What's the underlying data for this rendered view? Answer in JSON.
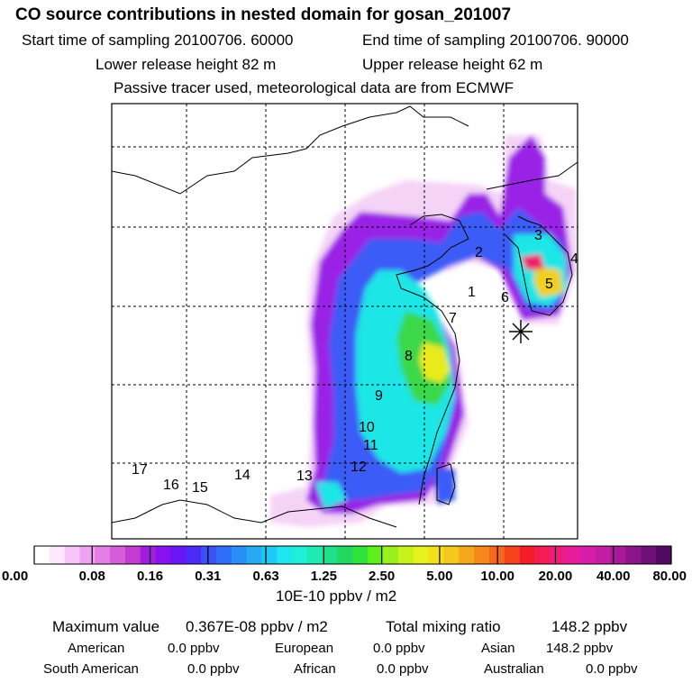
{
  "header": {
    "title": "CO  source contributions in nested domain for gosan_201007",
    "start_time": "Start time of sampling 20100706. 60000",
    "end_time": "End time of sampling 20100706. 90000",
    "lower_release": "Lower release height   82 m",
    "upper_release": "Upper release height   62 m",
    "tracer_note": "Passive tracer used, meteorological data are from ECMWF"
  },
  "map": {
    "region_labels": [
      "1",
      "2",
      "3",
      "4",
      "5",
      "6",
      "7",
      "8",
      "9",
      "10",
      "11",
      "12",
      "13",
      "14",
      "15",
      "16",
      "17"
    ],
    "receptor_marker": "asterisk-icon"
  },
  "chart_data": {
    "type": "heatmap",
    "title": "CO  source contributions in nested domain for gosan_201007",
    "colorbar": {
      "tick_labels": [
        "0.00",
        "0.08",
        "0.16",
        "0.31",
        "0.63",
        "1.25",
        "2.50",
        "5.00",
        "10.00",
        "20.00",
        "40.00",
        "80.00"
      ],
      "unit": "10E-10 ppbv / m2",
      "colors": [
        "#ffffff",
        "#fde9fd",
        "#f7c6f7",
        "#f0a3f0",
        "#e57fe5",
        "#d65cd9",
        "#c33bd0",
        "#a21ce0",
        "#8a10f0",
        "#6b16f5",
        "#4b2af5",
        "#3b50f7",
        "#2f6ff7",
        "#2a8ef7",
        "#26aaf5",
        "#20c8f5",
        "#1ee6f0",
        "#1ef0d8",
        "#1eeab2",
        "#1ee08a",
        "#22d860",
        "#2fe23a",
        "#5ff01c",
        "#9af01c",
        "#c8f21c",
        "#e8f21c",
        "#f5e01c",
        "#f5c81c",
        "#f5a81c",
        "#f58a1c",
        "#f5681c",
        "#f5441c",
        "#f51c2a",
        "#f51c55",
        "#f01c7c",
        "#e61c9a",
        "#d61ca8",
        "#c21ca3",
        "#aa189a",
        "#8c148a",
        "#6e1078",
        "#500a60"
      ]
    }
  },
  "stats": {
    "max_label": "Maximum value",
    "max_value": "0.367E-08 ppbv / m2",
    "total_label": "Total mixing ratio",
    "total_value": "148.2 ppbv",
    "american_label": "American",
    "american_value": "0.0 ppbv",
    "european_label": "European",
    "european_value": "0.0 ppbv",
    "asian_label": "Asian",
    "asian_value": "148.2 ppbv",
    "south_american_label": "South American",
    "south_american_value": "0.0 ppbv",
    "african_label": "African",
    "african_value": "0.0 ppbv",
    "australian_label": "Australian",
    "australian_value": "0.0 ppbv"
  }
}
